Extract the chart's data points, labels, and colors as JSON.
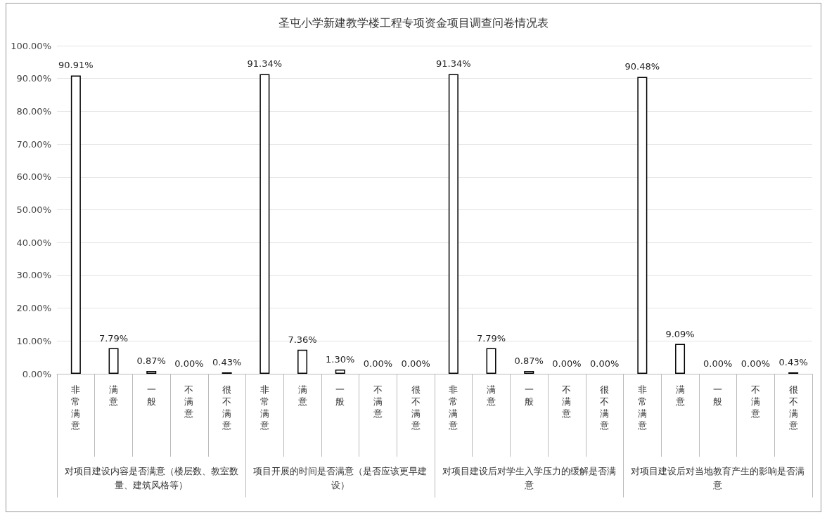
{
  "chart_data": {
    "type": "bar",
    "title": "圣屯小学新建教学楼工程专项资金项目调查问卷情况表",
    "categories": [
      "非常满意",
      "满意",
      "一般",
      "不满意",
      "很不满意",
      "非常满意",
      "满意",
      "一般",
      "不满意",
      "很不满意",
      "非常满意",
      "满意",
      "一般",
      "不满意",
      "很不满意",
      "非常满意",
      "满意",
      "一般",
      "不满意",
      "很不满意"
    ],
    "values": [
      90.91,
      7.79,
      0.87,
      0,
      0.43,
      91.34,
      7.36,
      1.3,
      0,
      0,
      91.34,
      7.79,
      0.87,
      0,
      0,
      90.48,
      9.09,
      0,
      0,
      0.43
    ],
    "value_labels": [
      "90.91%",
      "7.79%",
      "0.87%",
      "0.00%",
      "0.43%",
      "91.34%",
      "7.36%",
      "1.30%",
      "0.00%",
      "0.00%",
      "91.34%",
      "7.79%",
      "0.87%",
      "0.00%",
      "0.00%",
      "90.48%",
      "9.09%",
      "0.00%",
      "0.00%",
      "0.43%"
    ],
    "color": "#ffffff",
    "annotations": [
      "对项目建设内容是否满意（楼层数、教室数量、建筑风格等）",
      "项目开展的时间是否满意（是否应该更早建设）",
      "对项目建设后对学生入学压力的缓解是否满意",
      "对项目建设后对当地教育产生的影响是否满意"
    ],
    "ylim": [
      0,
      100
    ],
    "yticks": [
      {
        "value": 0,
        "label": "0.00%"
      },
      {
        "value": 10,
        "label": "10.00%"
      },
      {
        "value": 20,
        "label": "20.00%"
      },
      {
        "value": 30,
        "label": "30.00%"
      },
      {
        "value": 40,
        "label": "40.00%"
      },
      {
        "value": 50,
        "label": "50.00%"
      },
      {
        "value": 60,
        "label": "60.00%"
      },
      {
        "value": 70,
        "label": "70.00%"
      },
      {
        "value": 80,
        "label": "80.00%"
      },
      {
        "value": 90,
        "label": "90.00%"
      },
      {
        "value": 100,
        "label": "100.00%"
      }
    ],
    "grid": "y"
  }
}
